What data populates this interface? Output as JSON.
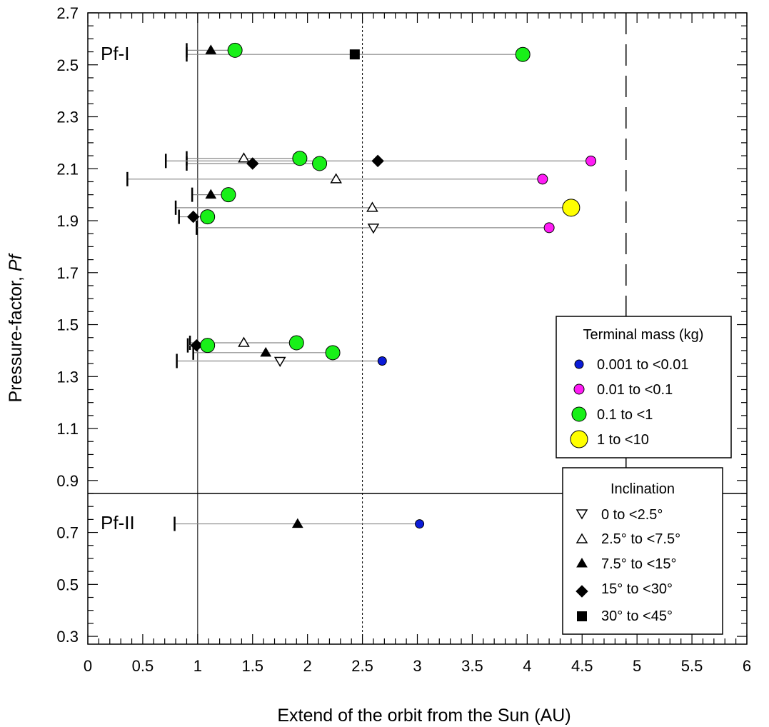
{
  "chart_data": {
    "type": "scatter",
    "title": "",
    "xlabel": "Extend of the orbit from the Sun (AU)",
    "ylabel": "Pressure-factor, ",
    "ylabel_italic": "Pf",
    "xlim": [
      0,
      6
    ],
    "ylim": [
      0.27,
      2.7
    ],
    "x_ticks": [
      {
        "v": 0,
        "label": "0"
      },
      {
        "v": 0.5,
        "label": "0.5"
      },
      {
        "v": 1,
        "label": "1"
      },
      {
        "v": 1.5,
        "label": "1.5"
      },
      {
        "v": 2,
        "label": "2"
      },
      {
        "v": 2.5,
        "label": "2.5"
      },
      {
        "v": 3,
        "label": "3"
      },
      {
        "v": 3.5,
        "label": "3.5"
      },
      {
        "v": 4,
        "label": "4"
      },
      {
        "v": 4.5,
        "label": "4.5"
      },
      {
        "v": 5,
        "label": "5"
      },
      {
        "v": 5.5,
        "label": "5.5"
      },
      {
        "v": 6,
        "label": "6"
      }
    ],
    "y_ticks": [
      {
        "v": 0.3,
        "label": "0.3"
      },
      {
        "v": 0.5,
        "label": "0.5"
      },
      {
        "v": 0.7,
        "label": "0.7"
      },
      {
        "v": 0.9,
        "label": "0.9"
      },
      {
        "v": 1.1,
        "label": "1.1"
      },
      {
        "v": 1.3,
        "label": "1.3"
      },
      {
        "v": 1.5,
        "label": "1.5"
      },
      {
        "v": 1.7,
        "label": "1.7"
      },
      {
        "v": 1.9,
        "label": "1.9"
      },
      {
        "v": 2.1,
        "label": "2.1"
      },
      {
        "v": 2.3,
        "label": "2.3"
      },
      {
        "v": 2.5,
        "label": "2.5"
      },
      {
        "v": 2.7,
        "label": "2.7"
      }
    ],
    "reference_lines": {
      "solid_x": 1.0,
      "dotted_x": 2.5,
      "dashed_x": 4.9,
      "divider_y": 0.85
    },
    "region_labels": [
      {
        "text": "Pf-I",
        "x": 0.12,
        "y": 2.54
      },
      {
        "text": "Pf-II",
        "x": 0.12,
        "y": 0.74
      }
    ],
    "orbits": [
      {
        "x_start": 0.9,
        "x_end": 3.96,
        "y": 2.54,
        "inclination_x": 2.43,
        "inclination": "30° to <45°",
        "mass_x": 3.96,
        "mass": "0.1 to <1"
      },
      {
        "x_start": 0.9,
        "x_end": 1.34,
        "y": 2.556,
        "inclination_x": 1.12,
        "inclination": "7.5° to <15°",
        "mass_x": 1.34,
        "mass": "0.1 to <1"
      },
      {
        "x_start": 0.9,
        "x_end": 1.93,
        "y": 2.14,
        "inclination_x": 1.42,
        "inclination": "2.5° to <7.5°",
        "mass_x": 1.93,
        "mass": "0.1 to <1"
      },
      {
        "x_start": 0.9,
        "x_end": 2.11,
        "y": 2.12,
        "inclination_x": 1.5,
        "inclination": "15° to <30°",
        "mass_x": 2.11,
        "mass": "0.1 to <1"
      },
      {
        "x_start": 0.71,
        "x_end": 4.58,
        "y": 2.13,
        "inclination_x": 2.64,
        "inclination": "15° to <30°",
        "mass_x": 4.58,
        "mass": "0.01 to <0.1"
      },
      {
        "x_start": 0.36,
        "x_end": 4.14,
        "y": 2.06,
        "inclination_x": 2.26,
        "inclination": "2.5° to <7.5°",
        "mass_x": 4.14,
        "mass": "0.01 to <0.1"
      },
      {
        "x_start": 0.95,
        "x_end": 1.28,
        "y": 2.0,
        "inclination_x": 1.12,
        "inclination": "7.5° to <15°",
        "mass_x": 1.28,
        "mass": "0.1 to <1"
      },
      {
        "x_start": 0.8,
        "x_end": 4.4,
        "y": 1.95,
        "inclination_x": 2.59,
        "inclination": "2.5° to <7.5°",
        "mass_x": 4.4,
        "mass": "1 to <10"
      },
      {
        "x_start": 0.83,
        "x_end": 1.09,
        "y": 1.915,
        "inclination_x": 0.96,
        "inclination": "15° to <30°",
        "mass_x": 1.09,
        "mass": "0.1 to <1"
      },
      {
        "x_start": 0.99,
        "x_end": 4.2,
        "y": 1.873,
        "inclination_x": 2.6,
        "inclination": "0 to <2.5°",
        "mass_x": 4.2,
        "mass": "0.01 to <0.1"
      },
      {
        "x_start": 0.93,
        "x_end": 1.9,
        "y": 1.43,
        "inclination_x": 1.42,
        "inclination": "2.5° to <7.5°",
        "mass_x": 1.9,
        "mass": "0.1 to <1"
      },
      {
        "x_start": 0.91,
        "x_end": 1.09,
        "y": 1.42,
        "inclination_x": 0.99,
        "inclination": "15° to <30°",
        "mass_x": 1.09,
        "mass": "0.1 to <1"
      },
      {
        "x_start": 0.96,
        "x_end": 2.23,
        "y": 1.392,
        "inclination_x": 1.62,
        "inclination": "7.5° to <15°",
        "mass_x": 2.23,
        "mass": "0.1 to <1"
      },
      {
        "x_start": 0.81,
        "x_end": 2.68,
        "y": 1.36,
        "inclination_x": 1.75,
        "inclination": "0 to <2.5°",
        "mass_x": 2.68,
        "mass": "0.001 to <0.01"
      },
      {
        "x_start": 0.79,
        "x_end": 3.02,
        "y": 0.733,
        "inclination_x": 1.91,
        "inclination": "7.5° to <15°",
        "mass_x": 3.02,
        "mass": "0.001 to <0.01"
      }
    ],
    "legend_mass": {
      "title": "Terminal mass (kg)",
      "position": "right-middle",
      "items": [
        {
          "label": "0.001 to <0.01",
          "color": "#0b1bd8",
          "size": "small"
        },
        {
          "label": "0.01 to <0.1",
          "color": "#ff1cf5",
          "size": "medium"
        },
        {
          "label": "0.1 to <1",
          "color": "#18f018",
          "size": "large"
        },
        {
          "label": "1 to <10",
          "color": "#ffff00",
          "size": "xlarge"
        }
      ]
    },
    "legend_inclination": {
      "title": "Inclination",
      "position": "bottom-right",
      "items": [
        {
          "label": "0 to <2.5°",
          "marker": "triangle-down-open"
        },
        {
          "label": "2.5° to <7.5°",
          "marker": "triangle-up-open"
        },
        {
          "label": "7.5° to <15°",
          "marker": "triangle-up-filled"
        },
        {
          "label": "15° to <30°",
          "marker": "diamond-filled"
        },
        {
          "label": "30° to <45°",
          "marker": "square-filled"
        }
      ]
    }
  }
}
